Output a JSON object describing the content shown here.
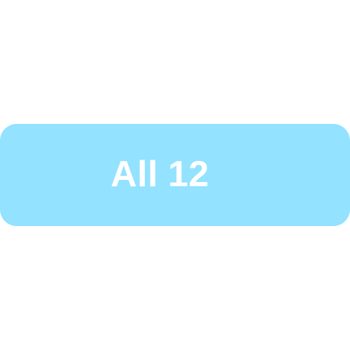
{
  "filter": {
    "label": "All",
    "count": "12",
    "background_color": "#93E2FF",
    "text_color": "#FFFFFF"
  }
}
